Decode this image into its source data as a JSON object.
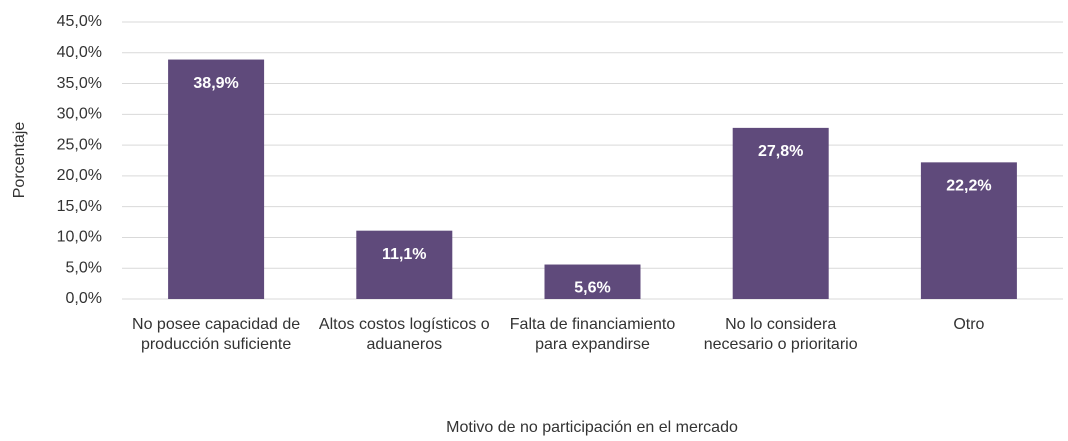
{
  "chart_data": {
    "type": "bar",
    "y_label": "Porcentaje",
    "x_label": "Motivo de no participación en el mercado",
    "categories": [
      "No posee capacidad de producción suficiente",
      "Altos costos logísticos o aduaneros",
      "Falta de financiamiento para expandirse",
      "No lo considera necesario o prioritario",
      "Otro"
    ],
    "values": [
      38.9,
      11.1,
      5.6,
      27.8,
      22.2
    ],
    "value_labels": [
      "38,9%",
      "11,1%",
      "5,6%",
      "27,8%",
      "22,2%"
    ],
    "color": "#5f4a7b",
    "ylim": [
      0,
      45
    ],
    "yticks": [
      {
        "value": 0,
        "label": "0,0%"
      },
      {
        "value": 5,
        "label": "5,0%"
      },
      {
        "value": 10,
        "label": "10,0%"
      },
      {
        "value": 15,
        "label": "15,0%"
      },
      {
        "value": 20,
        "label": "20,0%"
      },
      {
        "value": 25,
        "label": "25,0%"
      },
      {
        "value": 30,
        "label": "30,0%"
      },
      {
        "value": 35,
        "label": "35,0%"
      },
      {
        "value": 40,
        "label": "40,0%"
      },
      {
        "value": 45,
        "label": "45,0%"
      }
    ],
    "grid": true
  }
}
